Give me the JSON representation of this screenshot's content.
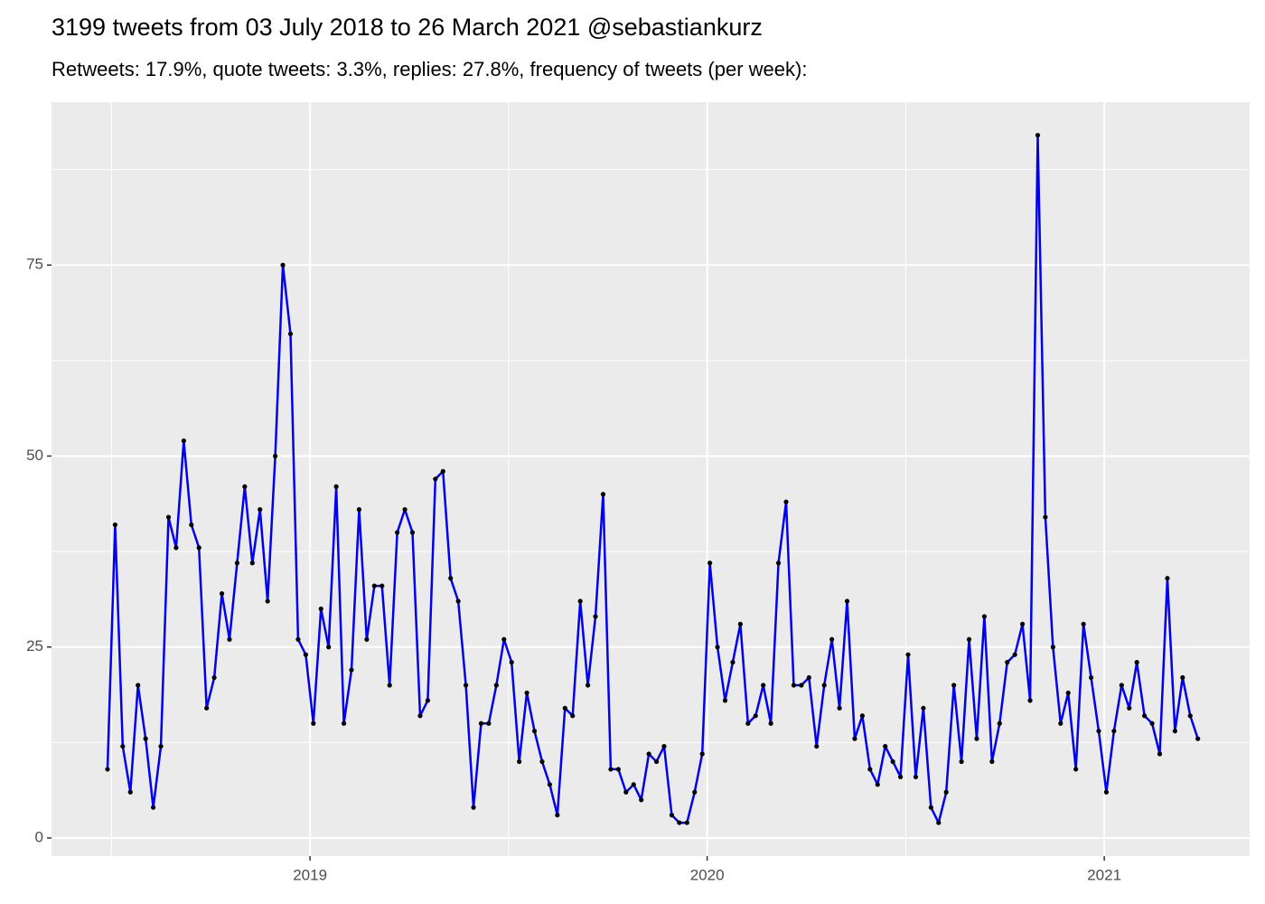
{
  "chart_data": {
    "type": "line",
    "title": "3199 tweets from 03 July 2018 to 26 March 2021 @sebastiankurz",
    "subtitle": "Retweets: 17.9%, quote tweets: 3.3%, replies: 27.8%, frequency of tweets (per week):",
    "x": [
      2018.49,
      2018.5092,
      2018.5284,
      2018.5476,
      2018.5668,
      2018.586,
      2018.6052,
      2018.6244,
      2018.6436,
      2018.6628,
      2018.682,
      2018.7012,
      2018.7204,
      2018.7396,
      2018.7588,
      2018.778,
      2018.7972,
      2018.8164,
      2018.8356,
      2018.8548,
      2018.874,
      2018.8932,
      2018.9124,
      2018.9316,
      2018.9508,
      2018.97,
      2018.9892,
      2019.0084,
      2019.0276,
      2019.0468,
      2019.066,
      2019.0852,
      2019.1044,
      2019.1236,
      2019.1428,
      2019.162,
      2019.1812,
      2019.2004,
      2019.2196,
      2019.2388,
      2019.258,
      2019.2772,
      2019.2964,
      2019.3156,
      2019.3348,
      2019.354,
      2019.3732,
      2019.3924,
      2019.4116,
      2019.4308,
      2019.45,
      2019.4692,
      2019.4884,
      2019.5076,
      2019.5268,
      2019.546,
      2019.5652,
      2019.5844,
      2019.6036,
      2019.6228,
      2019.642,
      2019.6612,
      2019.6804,
      2019.6996,
      2019.7188,
      2019.738,
      2019.7572,
      2019.7764,
      2019.7956,
      2019.8148,
      2019.834,
      2019.8532,
      2019.8724,
      2019.8916,
      2019.9108,
      2019.93,
      2019.9492,
      2019.9684,
      2019.9876,
      2020.0068,
      2020.026,
      2020.0452,
      2020.0644,
      2020.0836,
      2020.1028,
      2020.122,
      2020.1412,
      2020.1604,
      2020.1796,
      2020.1988,
      2020.218,
      2020.2372,
      2020.2564,
      2020.2756,
      2020.2948,
      2020.314,
      2020.3332,
      2020.3524,
      2020.3716,
      2020.3908,
      2020.41,
      2020.4292,
      2020.4484,
      2020.4676,
      2020.4868,
      2020.506,
      2020.5252,
      2020.5444,
      2020.5636,
      2020.5828,
      2020.602,
      2020.6212,
      2020.6404,
      2020.6596,
      2020.6788,
      2020.698,
      2020.7172,
      2020.7364,
      2020.7556,
      2020.7748,
      2020.794,
      2020.8132,
      2020.8324,
      2020.8516,
      2020.8708,
      2020.89,
      2020.9092,
      2020.9284,
      2020.9476,
      2020.9668,
      2020.986,
      2021.0052,
      2021.0244,
      2021.0436,
      2021.0628,
      2021.082,
      2021.1012,
      2021.1204,
      2021.1396,
      2021.1588,
      2021.178,
      2021.1972,
      2021.2164,
      2021.2356
    ],
    "values": [
      9,
      41,
      12,
      6,
      20,
      13,
      4,
      12,
      42,
      38,
      52,
      41,
      38,
      17,
      21,
      32,
      26,
      36,
      46,
      36,
      43,
      31,
      50,
      75,
      66,
      26,
      24,
      15,
      30,
      25,
      46,
      15,
      22,
      43,
      26,
      33,
      33,
      20,
      40,
      43,
      40,
      16,
      18,
      47,
      48,
      34,
      31,
      20,
      4,
      15,
      15,
      20,
      26,
      23,
      10,
      19,
      14,
      10,
      7,
      3,
      17,
      16,
      31,
      20,
      29,
      45,
      9,
      9,
      6,
      7,
      5,
      11,
      10,
      12,
      3,
      2,
      2,
      6,
      11,
      36,
      25,
      18,
      23,
      28,
      15,
      16,
      20,
      15,
      36,
      44,
      20,
      20,
      21,
      12,
      20,
      26,
      17,
      31,
      13,
      16,
      9,
      7,
      12,
      10,
      8,
      24,
      8,
      17,
      4,
      2,
      6,
      20,
      10,
      26,
      13,
      29,
      10,
      15,
      23,
      24,
      28,
      18,
      92,
      42,
      25,
      15,
      19,
      9,
      28,
      21,
      14,
      6,
      14,
      20,
      17,
      23,
      16,
      15,
      11,
      34,
      14,
      21,
      16,
      13
    ],
    "color": "#0000ee",
    "point_color": "#000000",
    "xlim": [
      2018.349,
      2021.366
    ],
    "xticks": [
      2019,
      2020,
      2021
    ],
    "ylim": [
      -2.37,
      96.33
    ],
    "yticks": [
      0,
      25,
      50,
      75
    ],
    "grid": true
  }
}
